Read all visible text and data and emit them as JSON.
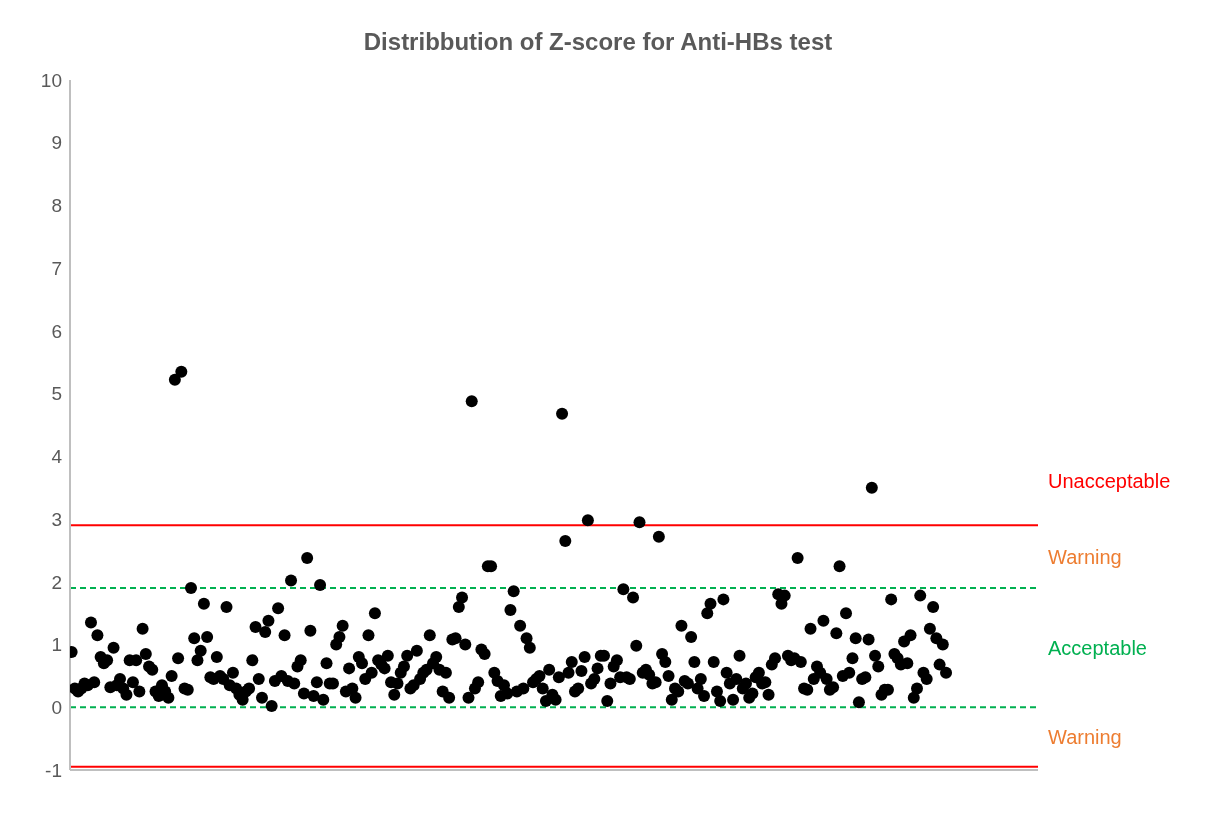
{
  "chart_data": {
    "type": "scatter",
    "title": "Distribbution of Z-score for Anti-HBs test",
    "categories": [
      null,
      null,
      null,
      null,
      null,
      null,
      null,
      null,
      null,
      null,
      null,
      null,
      null,
      null,
      null,
      null,
      null,
      null,
      null,
      null,
      null,
      null,
      null,
      null,
      null,
      null,
      null,
      null,
      null,
      null,
      null,
      null,
      null,
      null,
      null,
      null,
      null,
      null,
      null,
      null,
      null,
      null,
      null,
      null,
      null,
      null,
      null,
      null,
      null,
      null,
      null,
      null,
      null,
      null,
      null,
      null,
      null,
      null,
      null,
      null,
      null,
      null,
      null,
      null,
      null,
      null,
      null,
      null,
      null,
      null,
      null,
      null,
      null,
      null,
      null,
      null,
      null,
      null,
      null,
      null,
      null,
      null,
      null,
      null,
      null,
      null,
      null,
      null,
      null,
      null,
      null,
      null,
      null,
      null,
      null,
      null,
      null,
      null,
      null,
      null,
      null,
      null,
      null,
      null,
      null,
      null,
      null,
      null,
      null,
      null,
      null,
      null,
      null,
      null,
      null,
      null,
      null,
      null,
      null,
      null,
      null,
      null,
      null,
      null,
      null,
      null,
      null,
      null,
      null,
      null,
      null,
      null,
      null,
      null,
      null,
      null,
      null,
      null,
      null,
      null,
      null,
      null,
      null,
      null,
      null,
      null,
      null,
      null,
      null,
      null,
      null,
      null,
      null,
      null,
      null,
      null,
      null,
      null,
      null,
      null,
      null,
      null,
      null,
      null,
      null,
      null,
      null,
      null,
      null,
      null,
      null,
      null,
      null,
      null,
      null,
      null,
      null,
      null,
      null,
      null,
      null,
      null,
      null,
      null,
      null,
      null,
      null,
      null,
      null,
      null,
      null,
      null,
      null,
      null,
      null,
      null,
      null,
      null,
      null,
      null,
      null,
      null,
      null,
      null,
      null,
      null,
      null,
      null,
      null,
      null,
      null,
      null,
      null,
      null,
      null,
      null,
      null,
      null,
      null,
      null,
      null,
      null,
      null,
      null,
      null,
      null,
      null,
      null,
      null,
      null,
      null,
      null,
      null,
      null,
      null,
      null,
      null,
      null,
      null,
      null,
      null,
      null,
      null,
      null,
      null,
      null,
      null,
      null,
      null,
      null,
      null,
      null,
      null,
      null,
      null,
      null,
      null,
      null,
      null,
      null,
      null,
      null,
      null,
      null,
      null,
      null,
      null,
      null,
      null,
      null,
      null,
      null,
      null,
      null,
      null,
      null,
      null,
      null,
      null,
      null,
      null,
      null,
      null,
      null,
      null,
      null,
      null,
      null,
      null,
      null,
      null,
      null,
      null,
      null,
      null,
      null,
      null,
      null,
      null,
      null
    ],
    "series": [
      {
        "color": "#000000",
        "values": [
          0.88,
          0.3,
          0.25,
          0.3,
          0.38,
          0.35,
          1.35,
          0.4,
          1.15,
          0.8,
          0.7,
          0.75,
          0.32,
          0.95,
          0.35,
          0.45,
          0.3,
          0.2,
          0.75,
          0.4,
          0.75,
          0.25,
          1.25,
          0.85,
          0.65,
          0.6,
          0.25,
          0.18,
          0.35,
          0.25,
          0.15,
          0.5,
          5.22,
          0.78,
          5.35,
          0.3,
          0.28,
          1.9,
          1.1,
          0.75,
          0.9,
          1.65,
          1.12,
          0.48,
          0.45,
          0.8,
          0.5,
          0.45,
          1.6,
          0.35,
          0.55,
          0.3,
          0.2,
          0.12,
          0.25,
          0.3,
          0.75,
          1.28,
          0.45,
          0.15,
          1.2,
          1.38,
          0.02,
          0.42,
          1.58,
          0.5,
          1.15,
          0.42,
          2.02,
          0.38,
          0.65,
          0.75,
          0.22,
          2.38,
          1.22,
          0.18,
          0.4,
          1.95,
          0.12,
          0.7,
          0.38,
          0.38,
          1.0,
          1.12,
          1.3,
          0.25,
          0.62,
          0.3,
          0.15,
          0.8,
          0.7,
          0.45,
          1.15,
          0.55,
          1.5,
          0.75,
          0.68,
          0.62,
          0.82,
          0.4,
          0.2,
          0.38,
          0.55,
          0.65,
          0.82,
          0.3,
          0.35,
          0.9,
          0.45,
          0.55,
          0.6,
          1.15,
          0.7,
          0.8,
          0.6,
          0.25,
          0.55,
          0.15,
          1.08,
          1.1,
          1.6,
          1.75,
          1.0,
          0.15,
          4.88,
          0.3,
          0.4,
          0.92,
          0.85,
          2.25,
          2.25,
          0.55,
          0.42,
          0.18,
          0.35,
          0.22,
          1.55,
          1.85,
          0.25,
          1.3,
          0.3,
          1.1,
          0.95,
          0.4,
          0.45,
          0.5,
          0.3,
          0.1,
          0.6,
          0.2,
          0.12,
          0.48,
          4.68,
          2.65,
          0.55,
          0.72,
          0.25,
          0.3,
          0.58,
          0.8,
          2.98,
          0.38,
          0.45,
          0.62,
          0.82,
          0.82,
          0.1,
          0.38,
          0.65,
          0.75,
          0.48,
          1.88,
          0.48,
          0.45,
          1.75,
          0.98,
          2.95,
          0.55,
          0.6,
          0.52,
          0.38,
          0.4,
          2.72,
          0.85,
          0.72,
          0.5,
          0.12,
          0.3,
          0.25,
          1.3,
          0.42,
          0.38,
          1.12,
          0.72,
          0.3,
          0.45,
          0.18,
          1.5,
          1.65,
          0.72,
          0.25,
          0.1,
          1.72,
          0.55,
          0.38,
          0.12,
          0.45,
          0.82,
          0.3,
          0.38,
          0.15,
          0.22,
          0.48,
          0.55,
          0.38,
          0.4,
          0.2,
          0.68,
          0.78,
          1.8,
          1.65,
          1.78,
          0.82,
          0.75,
          0.78,
          2.38,
          0.72,
          0.3,
          0.28,
          1.25,
          0.45,
          0.65,
          0.55,
          1.38,
          0.45,
          0.28,
          0.32,
          1.18,
          2.25,
          0.5,
          1.5,
          0.55,
          0.78,
          1.1,
          0.08,
          0.45,
          0.48,
          1.08,
          3.5,
          0.82,
          0.65,
          0.2,
          0.28,
          0.28,
          1.72,
          0.85,
          0.78,
          0.68,
          1.05,
          0.7,
          1.15,
          0.15,
          0.3,
          1.78,
          0.55,
          0.45,
          1.25,
          1.6,
          1.1,
          0.68,
          1.0,
          0.55,
          null,
          null,
          null,
          null,
          null,
          null,
          null,
          null,
          null,
          null,
          null,
          null,
          null,
          null,
          null,
          null,
          null,
          null,
          null,
          null,
          null,
          null,
          null,
          null,
          null,
          null,
          null,
          null
        ]
      }
    ],
    "ylim": [
      -1,
      10
    ],
    "yticks": [
      -1,
      0,
      1,
      2,
      3,
      4,
      5,
      6,
      7,
      8,
      9,
      10
    ],
    "marker": "circle",
    "grid": false,
    "legend": false,
    "ref_lines": [
      {
        "axis": "y",
        "value": 2.9,
        "color": "#ff0000",
        "line_style": "solid"
      },
      {
        "axis": "y",
        "value": 1.9,
        "color": "#00b050",
        "line_style": "dashed"
      },
      {
        "axis": "y",
        "value": 0,
        "color": "#00b050",
        "line_style": "dashed"
      },
      {
        "axis": "y",
        "value": -0.95,
        "color": "#ff0000",
        "line_style": "solid"
      }
    ],
    "annotations": [
      "Unacceptable",
      "Warning",
      "Acceptable",
      "Warning"
    ]
  }
}
